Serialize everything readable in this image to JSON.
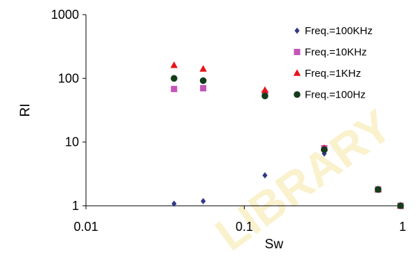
{
  "chart_data": {
    "type": "scatter",
    "xlabel": "Sw",
    "ylabel": "RI",
    "x_scale": "log",
    "y_scale": "log",
    "xlim": [
      0.01,
      1
    ],
    "ylim": [
      1,
      1000
    ],
    "x_ticks": [
      "0.01",
      "0.1",
      "1"
    ],
    "y_ticks": [
      "1",
      "10",
      "100",
      "1000"
    ],
    "grid": false,
    "legend_position": "top-right",
    "series": [
      {
        "name": "Freq.=100KHz",
        "marker": "diamond",
        "color": "#2e3a87",
        "points": [
          [
            0.036,
            1.08
          ],
          [
            0.055,
            1.18
          ],
          [
            0.135,
            3.0
          ],
          [
            0.32,
            6.6
          ],
          [
            0.7,
            1.8
          ],
          [
            0.97,
            1.0
          ]
        ]
      },
      {
        "name": "Freq.=10KHz",
        "marker": "square",
        "color": "#c455b8",
        "points": [
          [
            0.036,
            68
          ],
          [
            0.055,
            70
          ],
          [
            0.135,
            58
          ],
          [
            0.32,
            8.0
          ],
          [
            0.7,
            1.8
          ],
          [
            0.97,
            1.0
          ]
        ]
      },
      {
        "name": "Freq.=1KHz",
        "marker": "triangle",
        "color": "#e8141a",
        "points": [
          [
            0.036,
            160
          ],
          [
            0.055,
            140
          ],
          [
            0.135,
            65
          ],
          [
            0.32,
            8.0
          ],
          [
            0.7,
            1.8
          ],
          [
            0.97,
            1.0
          ]
        ]
      },
      {
        "name": "Freq.=100Hz",
        "marker": "circle",
        "color": "#133d1a",
        "points": [
          [
            0.036,
            100
          ],
          [
            0.055,
            92
          ],
          [
            0.135,
            53
          ],
          [
            0.32,
            7.6
          ],
          [
            0.7,
            1.8
          ],
          [
            0.97,
            1.0
          ]
        ]
      }
    ]
  },
  "watermark": {
    "text": "LIBRARY",
    "color": "#f6e6a6"
  }
}
